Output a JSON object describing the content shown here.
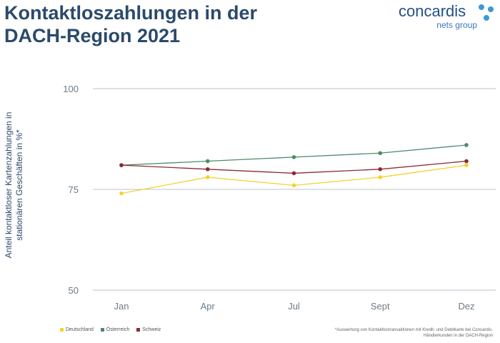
{
  "header": {
    "title": "Kontaktloszahlungen in der DACH-Region 2021"
  },
  "logo": {
    "wordmark": "concardis",
    "subline": "nets group"
  },
  "footnote": "*Auswertung von Kontaktlostransaktionen mit Kredit- und Debitkarte bei Concardis-Händlerkunden in der DACH-Region",
  "colors": {
    "title": "#2b4a6b",
    "deutschland": "#f2d330",
    "oesterreich": "#4f8a6a",
    "schweiz": "#8b2a33",
    "grid": "#b8c3cc",
    "tick": "#6b7b88",
    "logo_blue": "#3a9ad9"
  },
  "chart_data": {
    "type": "line",
    "title": "Kontaktloszahlungen in der DACH-Region 2021",
    "xlabel": "",
    "ylabel": "Anteil kontaktloser Kartenzahlungen in stationären Geschäften in %*",
    "categories": [
      "Jan",
      "Apr",
      "Jul",
      "Sept",
      "Dez"
    ],
    "ylim": [
      50,
      100
    ],
    "yticks": [
      50,
      75,
      100
    ],
    "grid": true,
    "legend_position": "bottom-left",
    "series": [
      {
        "name": "Deutschland",
        "values": [
          74,
          78,
          76,
          78,
          81
        ]
      },
      {
        "name": "Österreich",
        "values": [
          81,
          82,
          83,
          84,
          86
        ]
      },
      {
        "name": "Schweiz",
        "values": [
          81,
          80,
          79,
          80,
          82
        ]
      }
    ]
  }
}
